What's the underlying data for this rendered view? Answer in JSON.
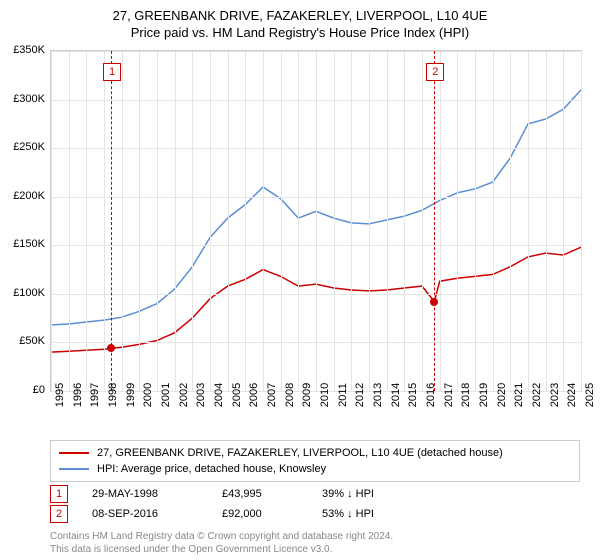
{
  "title_line1": "27, GREENBANK DRIVE, FAZAKERLEY, LIVERPOOL, L10 4UE",
  "title_line2": "Price paid vs. HM Land Registry's House Price Index (HPI)",
  "chart": {
    "type": "line",
    "background_color": "#ffffff",
    "grid_color": "#e5e5e5",
    "border_color": "#cccccc",
    "xlim": [
      1995,
      2025
    ],
    "ylim": [
      0,
      350000
    ],
    "ytick_step": 50000,
    "yticks": [
      "£0",
      "£50K",
      "£100K",
      "£150K",
      "£200K",
      "£250K",
      "£300K",
      "£350K"
    ],
    "xticks": [
      "1995",
      "1996",
      "1997",
      "1998",
      "1999",
      "2000",
      "2001",
      "2002",
      "2003",
      "2004",
      "2005",
      "2006",
      "2007",
      "2008",
      "2009",
      "2010",
      "2011",
      "2012",
      "2013",
      "2014",
      "2015",
      "2016",
      "2017",
      "2018",
      "2019",
      "2020",
      "2021",
      "2022",
      "2023",
      "2024",
      "2025"
    ],
    "series": [
      {
        "name": "price_paid",
        "color": "#cc0000",
        "line_width": 1.5,
        "data": [
          [
            1995,
            40000
          ],
          [
            1996,
            41000
          ],
          [
            1997,
            42000
          ],
          [
            1998,
            43000
          ],
          [
            1998.4,
            43995
          ],
          [
            1999,
            45000
          ],
          [
            2000,
            48000
          ],
          [
            2001,
            52000
          ],
          [
            2002,
            60000
          ],
          [
            2003,
            75000
          ],
          [
            2004,
            95000
          ],
          [
            2005,
            108000
          ],
          [
            2006,
            115000
          ],
          [
            2007,
            125000
          ],
          [
            2008,
            118000
          ],
          [
            2009,
            108000
          ],
          [
            2010,
            110000
          ],
          [
            2011,
            106000
          ],
          [
            2012,
            104000
          ],
          [
            2013,
            103000
          ],
          [
            2014,
            104000
          ],
          [
            2015,
            106000
          ],
          [
            2016,
            108000
          ],
          [
            2016.7,
            92000
          ],
          [
            2017,
            113000
          ],
          [
            2018,
            116000
          ],
          [
            2019,
            118000
          ],
          [
            2020,
            120000
          ],
          [
            2021,
            128000
          ],
          [
            2022,
            138000
          ],
          [
            2023,
            142000
          ],
          [
            2024,
            140000
          ],
          [
            2025,
            148000
          ]
        ]
      },
      {
        "name": "hpi",
        "color": "#5b8fd6",
        "line_width": 1.5,
        "data": [
          [
            1995,
            68000
          ],
          [
            1996,
            69000
          ],
          [
            1997,
            71000
          ],
          [
            1998,
            73000
          ],
          [
            1999,
            76000
          ],
          [
            2000,
            82000
          ],
          [
            2001,
            90000
          ],
          [
            2002,
            105000
          ],
          [
            2003,
            128000
          ],
          [
            2004,
            158000
          ],
          [
            2005,
            178000
          ],
          [
            2006,
            192000
          ],
          [
            2007,
            210000
          ],
          [
            2008,
            198000
          ],
          [
            2009,
            178000
          ],
          [
            2010,
            185000
          ],
          [
            2011,
            178000
          ],
          [
            2012,
            173000
          ],
          [
            2013,
            172000
          ],
          [
            2014,
            176000
          ],
          [
            2015,
            180000
          ],
          [
            2016,
            186000
          ],
          [
            2017,
            196000
          ],
          [
            2018,
            204000
          ],
          [
            2019,
            208000
          ],
          [
            2020,
            215000
          ],
          [
            2021,
            240000
          ],
          [
            2022,
            275000
          ],
          [
            2023,
            280000
          ],
          [
            2024,
            290000
          ],
          [
            2025,
            310000
          ]
        ]
      }
    ],
    "sale_markers": [
      {
        "n": "1",
        "x": 1998.4,
        "y": 43995,
        "box_y": 12
      },
      {
        "n": "2",
        "x": 2016.7,
        "y": 92000,
        "box_y": 12
      }
    ],
    "point_color": "#cc0000"
  },
  "legend": {
    "items": [
      {
        "color": "#cc0000",
        "label": "27, GREENBANK DRIVE, FAZAKERLEY, LIVERPOOL, L10 4UE (detached house)"
      },
      {
        "color": "#5b8fd6",
        "label": "HPI: Average price, detached house, Knowsley"
      }
    ]
  },
  "sales": [
    {
      "n": "1",
      "date": "29-MAY-1998",
      "price": "£43,995",
      "pct": "39% ↓ HPI"
    },
    {
      "n": "2",
      "date": "08-SEP-2016",
      "price": "£92,000",
      "pct": "53% ↓ HPI"
    }
  ],
  "footer_line1": "Contains HM Land Registry data © Crown copyright and database right 2024.",
  "footer_line2": "This data is licensed under the Open Government Licence v3.0."
}
